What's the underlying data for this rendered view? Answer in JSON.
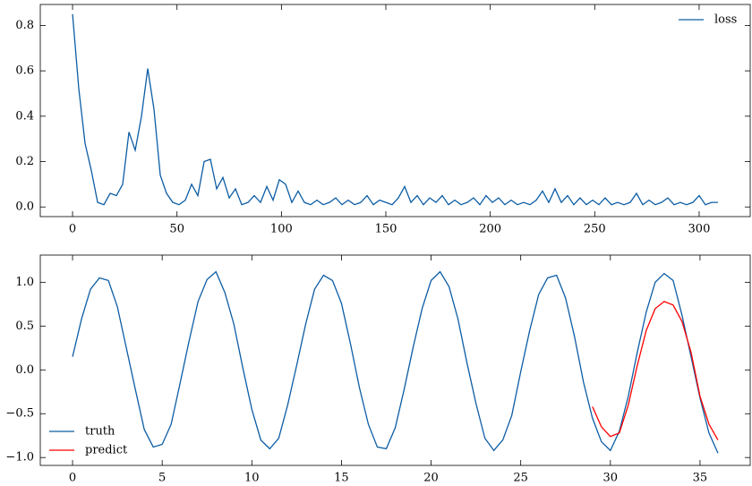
{
  "chart_data": [
    {
      "type": "line",
      "xlim": [
        -15.45,
        324.45
      ],
      "ylim": [
        -0.0425,
        0.8925
      ],
      "xticks": [
        0,
        50,
        100,
        150,
        200,
        250,
        300
      ],
      "yticks": [
        {
          "value": 0,
          "label": "0.0"
        },
        0.2,
        0.4,
        0.6,
        0.8
      ],
      "legend": "upper right",
      "series": [
        {
          "name": "loss",
          "color": "#0C5DA5",
          "x": [
            0,
            3,
            6,
            9,
            12,
            15,
            18,
            21,
            24,
            27,
            30,
            33,
            36,
            39,
            42,
            45,
            48,
            51,
            54,
            57,
            60,
            63,
            66,
            69,
            72,
            75,
            78,
            81,
            84,
            87,
            90,
            93,
            96,
            99,
            102,
            105,
            108,
            111,
            114,
            117,
            120,
            123,
            126,
            129,
            132,
            135,
            138,
            141,
            144,
            147,
            150,
            153,
            156,
            159,
            162,
            165,
            168,
            171,
            174,
            177,
            180,
            183,
            186,
            189,
            192,
            195,
            198,
            201,
            204,
            207,
            210,
            213,
            216,
            219,
            222,
            225,
            228,
            231,
            234,
            237,
            240,
            243,
            246,
            249,
            252,
            255,
            258,
            261,
            264,
            267,
            270,
            273,
            276,
            279,
            282,
            285,
            288,
            291,
            294,
            297,
            300,
            303,
            306,
            309
          ],
          "values": [
            0.85,
            0.52,
            0.28,
            0.16,
            0.02,
            0.01,
            0.06,
            0.05,
            0.1,
            0.33,
            0.25,
            0.4,
            0.61,
            0.43,
            0.14,
            0.06,
            0.02,
            0.01,
            0.03,
            0.1,
            0.05,
            0.2,
            0.21,
            0.08,
            0.13,
            0.04,
            0.08,
            0.01,
            0.02,
            0.05,
            0.02,
            0.09,
            0.03,
            0.12,
            0.1,
            0.02,
            0.07,
            0.02,
            0.01,
            0.03,
            0.01,
            0.02,
            0.04,
            0.01,
            0.03,
            0.01,
            0.02,
            0.05,
            0.01,
            0.03,
            0.02,
            0.01,
            0.04,
            0.09,
            0.02,
            0.05,
            0.01,
            0.04,
            0.02,
            0.05,
            0.01,
            0.03,
            0.01,
            0.02,
            0.04,
            0.01,
            0.05,
            0.02,
            0.04,
            0.01,
            0.03,
            0.01,
            0.02,
            0.01,
            0.03,
            0.07,
            0.02,
            0.08,
            0.02,
            0.05,
            0.01,
            0.04,
            0.01,
            0.03,
            0.01,
            0.04,
            0.01,
            0.02,
            0.01,
            0.02,
            0.06,
            0.01,
            0.03,
            0.01,
            0.02,
            0.04,
            0.01,
            0.02,
            0.01,
            0.02,
            0.05,
            0.01,
            0.02,
            0.02
          ]
        }
      ]
    },
    {
      "type": "line",
      "xlim": [
        -1.8,
        37.8
      ],
      "ylim": [
        -1.09,
        1.31
      ],
      "xticks": [
        0,
        5,
        10,
        15,
        20,
        25,
        30,
        35
      ],
      "yticks": [
        {
          "value": -1,
          "label": "−1.0"
        },
        {
          "value": -0.5,
          "label": "−0.5"
        },
        {
          "value": 0,
          "label": "0.0"
        },
        0.5,
        {
          "value": 1,
          "label": "1.0"
        }
      ],
      "legend": "lower left",
      "series": [
        {
          "name": "truth",
          "color": "#0C5DA5",
          "x": [
            0,
            0.5,
            1,
            1.5,
            2,
            2.5,
            3,
            3.5,
            4,
            4.5,
            5,
            5.5,
            6,
            6.5,
            7,
            7.5,
            8,
            8.5,
            9,
            9.5,
            10,
            10.5,
            11,
            11.5,
            12,
            12.5,
            13,
            13.5,
            14,
            14.5,
            15,
            15.5,
            16,
            16.5,
            17,
            17.5,
            18,
            18.5,
            19,
            19.5,
            20,
            20.5,
            21,
            21.5,
            22,
            22.5,
            23,
            23.5,
            24,
            24.5,
            25,
            25.5,
            26,
            26.5,
            27,
            27.5,
            28,
            28.5,
            29,
            29.5,
            30,
            30.5,
            31,
            31.5,
            32,
            32.5,
            33,
            33.5,
            34,
            34.5,
            35,
            35.5,
            36
          ],
          "values": [
            0.15,
            0.58,
            0.92,
            1.05,
            1.02,
            0.72,
            0.25,
            -0.22,
            -0.68,
            -0.88,
            -0.85,
            -0.62,
            -0.15,
            0.33,
            0.78,
            1.03,
            1.12,
            0.88,
            0.52,
            0.02,
            -0.45,
            -0.8,
            -0.9,
            -0.78,
            -0.4,
            0.05,
            0.52,
            0.92,
            1.08,
            1.02,
            0.76,
            0.3,
            -0.2,
            -0.62,
            -0.88,
            -0.9,
            -0.66,
            -0.22,
            0.26,
            0.7,
            1.02,
            1.12,
            0.95,
            0.58,
            0.08,
            -0.38,
            -0.78,
            -0.92,
            -0.8,
            -0.52,
            -0.02,
            0.45,
            0.86,
            1.05,
            1.08,
            0.82,
            0.38,
            -0.14,
            -0.55,
            -0.82,
            -0.92,
            -0.7,
            -0.3,
            0.2,
            0.66,
            1.0,
            1.1,
            1.02,
            0.62,
            0.15,
            -0.32,
            -0.72,
            -0.95
          ]
        },
        {
          "name": "predict",
          "color": "#ff0000",
          "x": [
            29,
            29.5,
            30,
            30.5,
            31,
            31.5,
            32,
            32.5,
            33,
            33.5,
            34,
            34.5,
            35,
            35.5,
            36
          ],
          "values": [
            -0.42,
            -0.65,
            -0.76,
            -0.72,
            -0.4,
            0.05,
            0.45,
            0.7,
            0.78,
            0.74,
            0.55,
            0.2,
            -0.3,
            -0.62,
            -0.8
          ]
        }
      ]
    }
  ]
}
